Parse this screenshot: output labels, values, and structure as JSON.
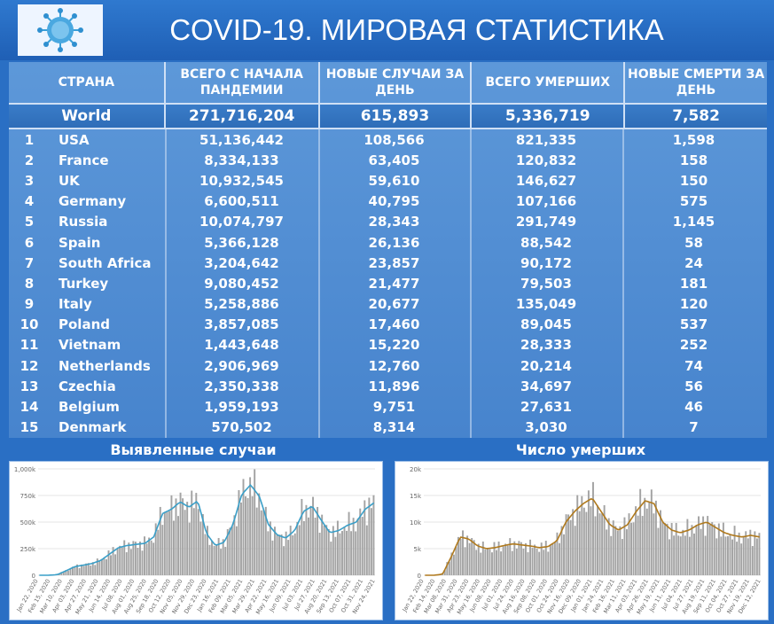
{
  "header": {
    "title": "COVID-19. МИРОВАЯ СТАТИСТИКА",
    "logo_icon": "virus-icon"
  },
  "table": {
    "columns": [
      "СТРАНА",
      "ВСЕГО С НАЧАЛА ПАНДЕМИИ",
      "НОВЫЕ СЛУЧАИ ЗА ДЕНЬ",
      "ВСЕГО УМЕРШИХ",
      "НОВЫЕ СМЕРТИ ЗА ДЕНЬ"
    ],
    "world": {
      "name": "World",
      "total": "271,716,204",
      "new_cases": "615,893",
      "deaths": "5,336,719",
      "new_deaths": "7,582"
    },
    "rows": [
      {
        "rank": "1",
        "country": "USA",
        "total": "51,136,442",
        "new_cases": "108,566",
        "deaths": "821,335",
        "new_deaths": "1,598"
      },
      {
        "rank": "2",
        "country": "France",
        "total": "8,334,133",
        "new_cases": "63,405",
        "deaths": "120,832",
        "new_deaths": "158"
      },
      {
        "rank": "3",
        "country": "UK",
        "total": "10,932,545",
        "new_cases": "59,610",
        "deaths": "146,627",
        "new_deaths": "150"
      },
      {
        "rank": "4",
        "country": "Germany",
        "total": "6,600,511",
        "new_cases": "40,795",
        "deaths": "107,166",
        "new_deaths": "575"
      },
      {
        "rank": "5",
        "country": "Russia",
        "total": "10,074,797",
        "new_cases": "28,343",
        "deaths": "291,749",
        "new_deaths": "1,145"
      },
      {
        "rank": "6",
        "country": "Spain",
        "total": "5,366,128",
        "new_cases": "26,136",
        "deaths": "88,542",
        "new_deaths": "58"
      },
      {
        "rank": "7",
        "country": "South Africa",
        "total": "3,204,642",
        "new_cases": "23,857",
        "deaths": "90,172",
        "new_deaths": "24"
      },
      {
        "rank": "8",
        "country": "Turkey",
        "total": "9,080,452",
        "new_cases": "21,477",
        "deaths": "79,503",
        "new_deaths": "181"
      },
      {
        "rank": "9",
        "country": "Italy",
        "total": "5,258,886",
        "new_cases": "20,677",
        "deaths": "135,049",
        "new_deaths": "120"
      },
      {
        "rank": "10",
        "country": "Poland",
        "total": "3,857,085",
        "new_cases": "17,460",
        "deaths": "89,045",
        "new_deaths": "537"
      },
      {
        "rank": "11",
        "country": "Vietnam",
        "total": "1,443,648",
        "new_cases": "15,220",
        "deaths": "28,333",
        "new_deaths": "252"
      },
      {
        "rank": "12",
        "country": "Netherlands",
        "total": "2,906,969",
        "new_cases": "12,760",
        "deaths": "20,214",
        "new_deaths": "74"
      },
      {
        "rank": "13",
        "country": "Czechia",
        "total": "2,350,338",
        "new_cases": "11,896",
        "deaths": "34,697",
        "new_deaths": "56"
      },
      {
        "rank": "14",
        "country": "Belgium",
        "total": "1,959,193",
        "new_cases": "9,751",
        "deaths": "27,631",
        "new_deaths": "46"
      },
      {
        "rank": "15",
        "country": "Denmark",
        "total": "570,502",
        "new_cases": "8,314",
        "deaths": "3,030",
        "new_deaths": "7"
      }
    ]
  },
  "charts": {
    "cases_title": "Выявленные случаи",
    "deaths_title": "Число умерших"
  },
  "chart_data": [
    {
      "type": "bar",
      "title": "Выявленные случаи",
      "ylim": [
        0,
        1000000
      ],
      "yticks": [
        "0",
        "250k",
        "500k",
        "750k",
        "1,000k"
      ],
      "xticks": [
        "Jan 22, 2020",
        "Feb 15, 2020",
        "Mar 10, 2020",
        "Apr 03, 2020",
        "Apr 27, 2020",
        "May 21, 2020",
        "Jun 14, 2020",
        "Jul 08, 2020",
        "Aug 01, 2020",
        "Aug 25, 2020",
        "Sep 18, 2020",
        "Oct 12, 2020",
        "Nov 05, 2020",
        "Nov 29, 2020",
        "Dec 23, 2020",
        "Jan 16, 2021",
        "Feb 09, 2021",
        "Mar 05, 2021",
        "Mar 29, 2021",
        "Apr 22, 2021",
        "May 16, 2021",
        "Jun 09, 2021",
        "Jul 03, 2021",
        "Jul 27, 2021",
        "Aug 20, 2021",
        "Sep 13, 2021",
        "Oct 07, 2021",
        "Oct 31, 2021",
        "Nov 24, 2021"
      ],
      "series": [
        {
          "values": [
            0,
            0,
            5000,
            40000,
            80000,
            95000,
            110000,
            140000,
            200000,
            260000,
            280000,
            290000,
            300000,
            360000,
            580000,
            620000,
            690000,
            640000,
            700000,
            390000,
            280000,
            310000,
            480000,
            760000,
            850000,
            740000,
            480000,
            380000,
            350000,
            420000,
            600000,
            650000,
            520000,
            400000,
            420000,
            470000,
            500000,
            620000,
            680000
          ]
        }
      ],
      "smooth_color": "#3a9fc8"
    },
    {
      "type": "bar",
      "title": "Число умерших",
      "ylim": [
        0,
        20000
      ],
      "yticks": [
        "0",
        "5k",
        "10k",
        "15k",
        "20k"
      ],
      "xticks": [
        "Jan 22, 2020",
        "Feb 14, 2020",
        "Mar 08, 2020",
        "Mar 31, 2020",
        "Apr 23, 2020",
        "May 16, 2020",
        "Jun 08, 2020",
        "Jul 01, 2020",
        "Jul 24, 2020",
        "Aug 16, 2020",
        "Sep 08, 2020",
        "Oct 01, 2020",
        "Oct 24, 2020",
        "Nov 16, 2020",
        "Dec 09, 2020",
        "Jan 01, 2021",
        "Jan 24, 2021",
        "Feb 16, 2021",
        "Mar 11, 2021",
        "Apr 03, 2021",
        "Apr 26, 2021",
        "May 19, 2021",
        "Jun 11, 2021",
        "Jul 04, 2021",
        "Jul 27, 2021",
        "Aug 19, 2021",
        "Sep 11, 2021",
        "Oct 04, 2021",
        "Oct 27, 2021",
        "Nov 19, 2021",
        "Dec 12, 2021"
      ],
      "series": [
        {
          "values": [
            0,
            0,
            200,
            3500,
            7200,
            6800,
            5500,
            5000,
            5200,
            5600,
            5900,
            5700,
            5500,
            5200,
            5400,
            6500,
            10000,
            12000,
            13500,
            14500,
            12000,
            9500,
            8500,
            9500,
            12000,
            14000,
            13500,
            10000,
            8500,
            8000,
            8500,
            9500,
            10000,
            9000,
            8000,
            7500,
            7200,
            7500,
            7200
          ]
        }
      ],
      "smooth_color": "#b07a1e"
    }
  ]
}
